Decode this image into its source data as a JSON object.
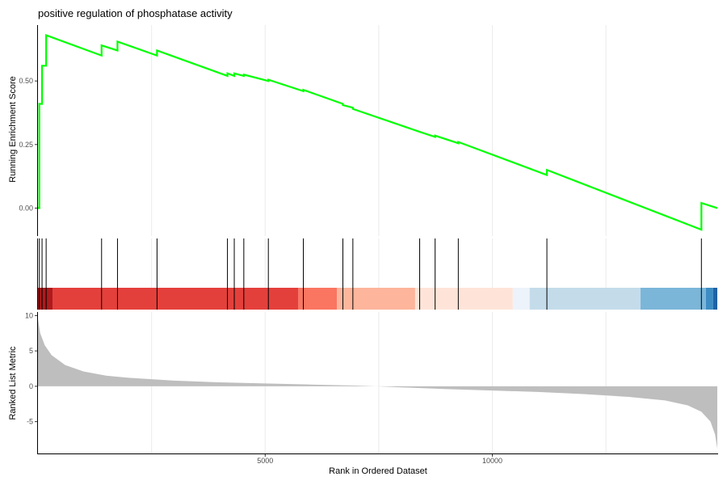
{
  "chart_data": [
    {
      "panel": "running-enrichment-score",
      "type": "line",
      "title": "positive regulation of phosphatase activity",
      "ylabel": "Running Enrichment Score",
      "xlim": [
        0,
        14950
      ],
      "ylim": [
        -0.11,
        0.72
      ],
      "y_ticks": [
        0.0,
        0.25,
        0.5
      ],
      "y_tick_labels": [
        "0.00",
        "0.25",
        "0.50"
      ],
      "x_gridlines": [
        2500,
        5000,
        7500,
        10000,
        12500
      ],
      "grid": true,
      "series": [
        {
          "color": "#00ff00",
          "x": [
            0,
            30,
            30,
            90,
            90,
            180,
            180,
            1400,
            1400,
            1750,
            1750,
            2620,
            2620,
            4170,
            4170,
            4320,
            4320,
            4530,
            4530,
            5070,
            5070,
            5840,
            5840,
            6710,
            6710,
            6930,
            6930,
            8400,
            8400,
            8740,
            8740,
            9250,
            9250,
            11200,
            11200,
            14600,
            14600,
            14950
          ],
          "y": [
            0.0,
            0.0,
            0.41,
            0.41,
            0.56,
            0.56,
            0.68,
            0.6,
            0.64,
            0.62,
            0.655,
            0.6,
            0.62,
            0.52,
            0.53,
            0.52,
            0.53,
            0.52,
            0.525,
            0.5,
            0.505,
            0.46,
            0.465,
            0.41,
            0.405,
            0.395,
            0.39,
            0.3,
            0.3,
            0.28,
            0.285,
            0.255,
            0.26,
            0.13,
            0.15,
            -0.085,
            0.02,
            0.0
          ]
        }
      ]
    },
    {
      "panel": "gene-hits",
      "type": "rug",
      "x": [
        30,
        90,
        180,
        1400,
        1750,
        2620,
        4170,
        4320,
        4530,
        5070,
        5840,
        6710,
        6930,
        8400,
        8740,
        9250,
        11200,
        14600
      ]
    },
    {
      "panel": "ranked-list-color-bar",
      "type": "heatmap",
      "segments": [
        {
          "x0": 0,
          "x1": 320,
          "color": "#ae1b1d"
        },
        {
          "x0": 320,
          "x1": 5730,
          "color": "#e4403b"
        },
        {
          "x0": 5730,
          "x1": 6580,
          "color": "#fa7661"
        },
        {
          "x0": 6580,
          "x1": 8300,
          "color": "#fdb59b"
        },
        {
          "x0": 8300,
          "x1": 10450,
          "color": "#fee4d8"
        },
        {
          "x0": 10450,
          "x1": 10820,
          "color": "#edf3fa"
        },
        {
          "x0": 10820,
          "x1": 13260,
          "color": "#c4dcea"
        },
        {
          "x0": 13260,
          "x1": 14700,
          "color": "#7bb6d9"
        },
        {
          "x0": 14700,
          "x1": 14860,
          "color": "#3c8dc4"
        },
        {
          "x0": 14860,
          "x1": 14950,
          "color": "#1e62a6"
        }
      ]
    },
    {
      "panel": "ranked-list-metric",
      "type": "area",
      "xlabel": "Rank in Ordered Dataset",
      "ylabel": "Ranked List Metric",
      "ylim": [
        -9.5,
        10.5
      ],
      "y_ticks": [
        10,
        5,
        0,
        -5
      ],
      "y_tick_labels": [
        "10",
        "5",
        "0",
        "-5"
      ],
      "x_ticks": [
        5000,
        10000
      ],
      "x_tick_labels": [
        "5000",
        "10000"
      ],
      "color": "#bebebe",
      "x": [
        0,
        50,
        150,
        300,
        600,
        1000,
        1500,
        2000,
        3000,
        4000,
        5000,
        6000,
        7000,
        7450,
        8000,
        9000,
        10000,
        11000,
        12000,
        13000,
        13800,
        14300,
        14600,
        14800,
        14900,
        14950
      ],
      "y": [
        9.5,
        7.5,
        5.8,
        4.4,
        3.0,
        2.1,
        1.5,
        1.2,
        0.8,
        0.55,
        0.4,
        0.25,
        0.1,
        0.0,
        -0.15,
        -0.4,
        -0.6,
        -0.8,
        -1.1,
        -1.5,
        -2.0,
        -2.7,
        -3.6,
        -5.0,
        -6.8,
        -8.8
      ]
    }
  ]
}
